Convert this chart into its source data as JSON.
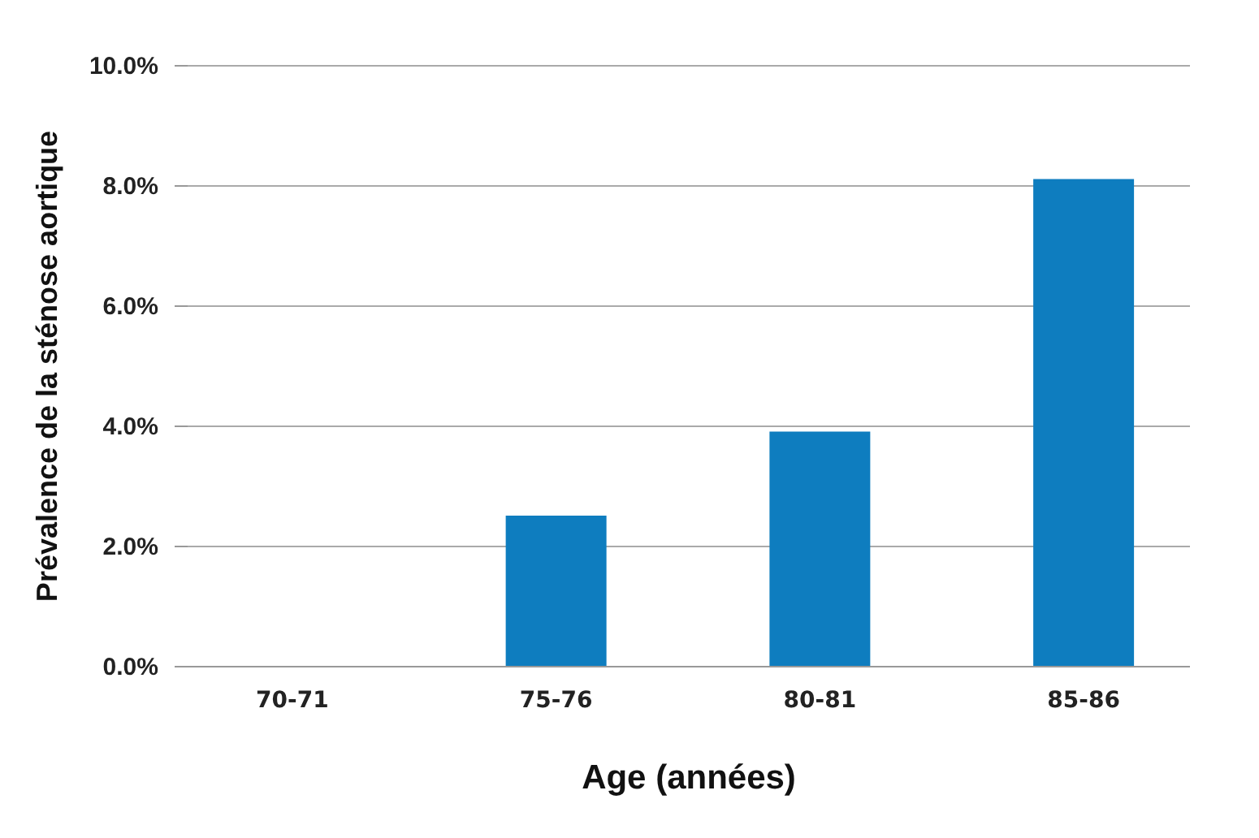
{
  "chart_data": {
    "type": "bar",
    "xlabel": "Age (années)",
    "ylabel": "Prévalence de la sténose aortique",
    "categories": [
      "70-71",
      "75-76",
      "80-81",
      "85-86"
    ],
    "values": [
      0,
      2.5,
      3.9,
      8.1
    ],
    "color": "#0e7dbf",
    "ylim": [
      0,
      10
    ],
    "yticks": [
      {
        "value": 0,
        "label": "0.0%"
      },
      {
        "value": 2,
        "label": "2.0%"
      },
      {
        "value": 4,
        "label": "4.0%"
      },
      {
        "value": 6,
        "label": "6.0%"
      },
      {
        "value": 8,
        "label": "8.0%"
      },
      {
        "value": 10,
        "label": "10.0%"
      }
    ],
    "grid": "y"
  }
}
